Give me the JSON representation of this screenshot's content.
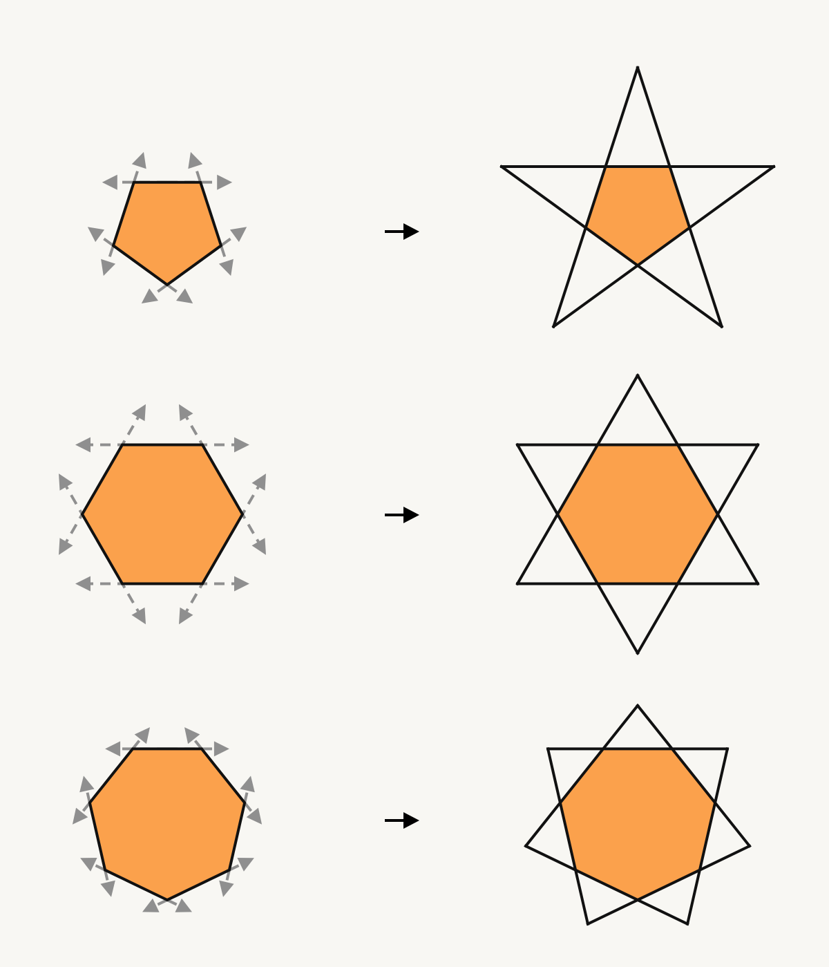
{
  "colors": {
    "background": "#f8f7f3",
    "fill": "#fba14c",
    "outline": "#111111",
    "extension_arrows": "#8f8f8f",
    "arrow": "#000000"
  },
  "rows": [
    {
      "name": "pentagon",
      "sides": 5,
      "star": "pentagram"
    },
    {
      "name": "hexagon",
      "sides": 6,
      "star": "hexagram"
    },
    {
      "name": "heptagon",
      "sides": 7,
      "star": "heptagram"
    }
  ]
}
